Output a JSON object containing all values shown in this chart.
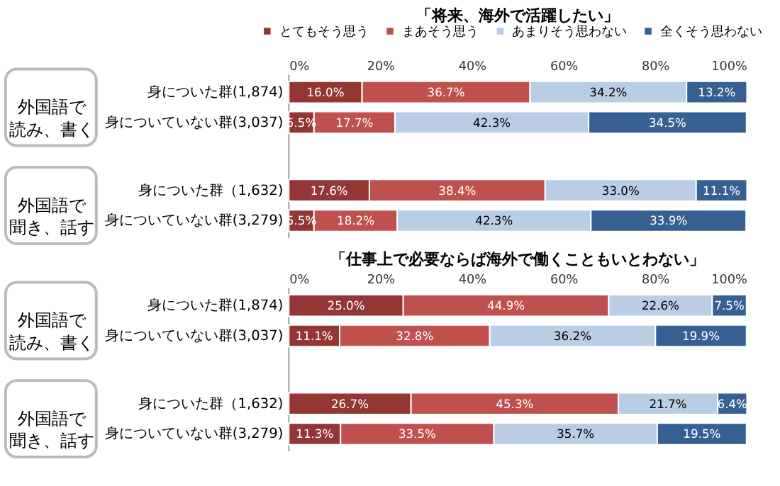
{
  "chart_data": [
    {
      "type": "bar",
      "orientation": "horizontal",
      "stacked": true,
      "title": "「将来、海外で活躍したい」",
      "categories": [
        "身についた群(1,874)",
        "身についていない群(3,037)",
        "身についた群（1,632)",
        "身についていない群(3,279)"
      ],
      "series": [
        {
          "name": "とてもそう思う",
          "color": "#943634",
          "values": [
            16.0,
            5.5,
            17.6,
            5.5
          ],
          "value_labels": [
            "16.0%",
            "5.5%",
            "17.6%",
            "5.5%"
          ]
        },
        {
          "name": "まあそう思う",
          "color": "#c0504d",
          "values": [
            36.7,
            17.7,
            38.4,
            18.2
          ],
          "value_labels": [
            "36.7%",
            "17.7%",
            "38.4%",
            "18.2%"
          ]
        },
        {
          "name": "あまりそう思わない",
          "color": "#b9cde5",
          "values": [
            34.2,
            42.3,
            33.0,
            42.3
          ],
          "value_labels": [
            "34.2%",
            "42.3%",
            "33.0%",
            "42.3%"
          ]
        },
        {
          "name": "全くそう思わない",
          "color": "#376092",
          "values": [
            13.2,
            34.5,
            11.1,
            33.9
          ],
          "value_labels": [
            "13.2%",
            "34.5%",
            "11.1%",
            "33.9%"
          ]
        }
      ],
      "xlim": [
        0,
        100
      ],
      "xticks": [
        {
          "value": 0,
          "label": "0%"
        },
        {
          "value": 20,
          "label": "20%"
        },
        {
          "value": 40,
          "label": "40%"
        },
        {
          "value": 60,
          "label": "60%"
        },
        {
          "value": 80,
          "label": "80%"
        },
        {
          "value": 100,
          "label": "100%"
        }
      ],
      "legend": "top",
      "grid": false,
      "annotations": [
        "外国語で読み、書く",
        "外国語で聞き、話す"
      ]
    },
    {
      "type": "bar",
      "orientation": "horizontal",
      "stacked": true,
      "title": "「仕事上で必要ならば海外で働くこともいとわない」",
      "categories": [
        "身についた群(1,874)",
        "身についていない群(3,037)",
        "身についた群（1,632)",
        "身についていない群(3,279)"
      ],
      "series": [
        {
          "color": "#943634",
          "values": [
            25.0,
            11.1,
            26.7,
            11.3
          ],
          "value_labels": [
            "25.0%",
            "11.1%",
            "26.7%",
            "11.3%"
          ]
        },
        {
          "color": "#c0504d",
          "values": [
            44.9,
            32.8,
            45.3,
            33.5
          ],
          "value_labels": [
            "44.9%",
            "32.8%",
            "45.3%",
            "33.5%"
          ]
        },
        {
          "color": "#b9cde5",
          "values": [
            22.6,
            36.2,
            21.7,
            35.7
          ],
          "value_labels": [
            "22.6%",
            "36.2%",
            "21.7%",
            "35.7%"
          ]
        },
        {
          "color": "#376092",
          "values": [
            7.5,
            19.9,
            6.4,
            19.5
          ],
          "value_labels": [
            "7.5%",
            "19.9%",
            "6.4%",
            "19.5%"
          ]
        }
      ],
      "xlim": [
        0,
        100
      ],
      "xticks": [
        {
          "value": 0,
          "label": "0%"
        },
        {
          "value": 20,
          "label": "20%"
        },
        {
          "value": 40,
          "label": "40%"
        },
        {
          "value": 60,
          "label": "60%"
        },
        {
          "value": 80,
          "label": "80%"
        },
        {
          "value": 100,
          "label": "100%"
        }
      ],
      "legend": false,
      "grid": false,
      "annotations": [
        "外国語で読み、書く",
        "外国語で聞き、話す"
      ]
    }
  ]
}
